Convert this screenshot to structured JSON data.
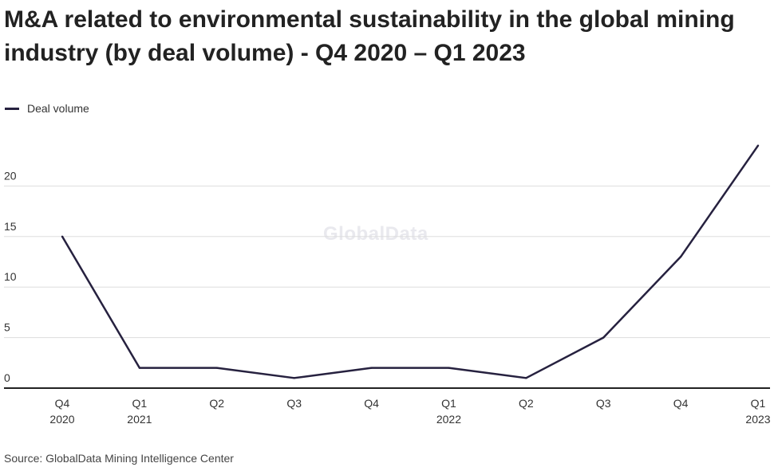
{
  "title": "M&A related to environmental sustainability in the global mining industry (by deal volume) - Q4 2020 – Q1 2023",
  "source": "Source: GlobalData Mining Intelligence Center",
  "watermark": "GlobalData",
  "colors": {
    "line": "#26213f",
    "grid": "#dddddd",
    "axis": "#222222"
  },
  "chart_data": {
    "type": "line",
    "title": "M&A related to environmental sustainability in the global mining industry (by deal volume) - Q4 2020 – Q1 2023",
    "xlabel": "",
    "ylabel": "",
    "categories": [
      [
        "Q4",
        "2020"
      ],
      [
        "Q1",
        "2021"
      ],
      [
        "Q2",
        ""
      ],
      [
        "Q3",
        ""
      ],
      [
        "Q4",
        ""
      ],
      [
        "Q1",
        "2022"
      ],
      [
        "Q2",
        ""
      ],
      [
        "Q3",
        ""
      ],
      [
        "Q4",
        ""
      ],
      [
        "Q1",
        "2023"
      ]
    ],
    "series": [
      {
        "name": "Deal volume",
        "values": [
          15,
          2,
          2,
          1,
          2,
          2,
          1,
          5,
          13,
          24
        ]
      }
    ],
    "ylim": [
      0,
      25
    ],
    "yticks": [
      0,
      5,
      10,
      15,
      20
    ],
    "grid": true,
    "legend": "top-left"
  }
}
